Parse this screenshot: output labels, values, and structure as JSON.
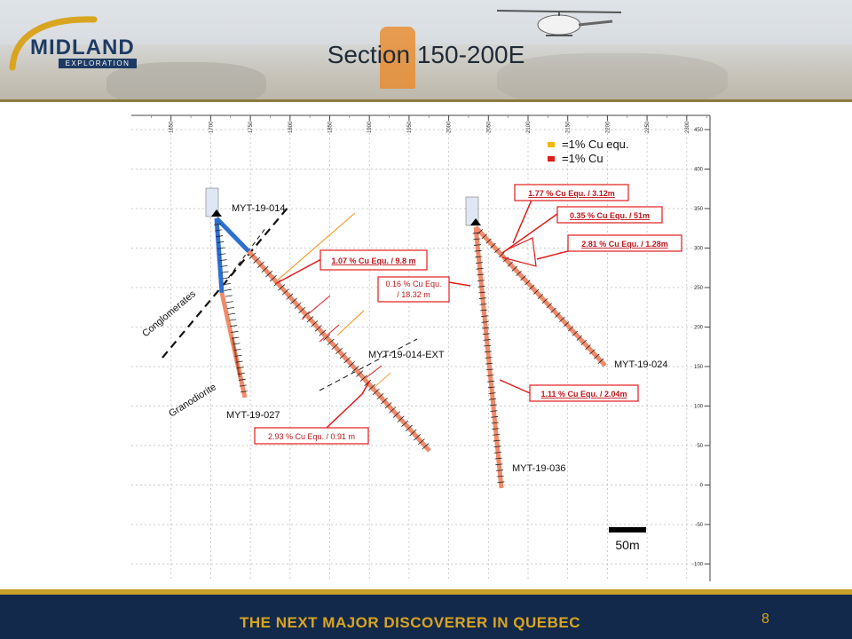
{
  "header": {
    "logo_text": "MIDLAND",
    "logo_subtext": "EXPLORATION",
    "title": "Section 150-200E"
  },
  "legend": {
    "items": [
      {
        "label": "=1% Cu equ.",
        "color": "#f2b705"
      },
      {
        "label": "=1% Cu",
        "color": "#e31b1b"
      }
    ]
  },
  "x_axis": {
    "ticks": [
      "1650",
      "1700",
      "1750",
      "1800",
      "1850",
      "1900",
      "1950",
      "2000",
      "2050",
      "2100",
      "2150",
      "2200",
      "2250",
      "2300"
    ]
  },
  "y_axis": {
    "ticks": [
      "450",
      "400",
      "350",
      "300",
      "250",
      "200",
      "150",
      "100",
      "50",
      "0",
      "-50",
      "-100"
    ]
  },
  "holes": {
    "myt_014": "MYT-19-014",
    "myt_014_ext": "MYT-19-014-EXT",
    "myt_027": "MYT-19-027",
    "myt_024": "MYT-19-024",
    "myt_036": "MYT-19-036"
  },
  "geology": {
    "conglomerates": "Conglomerates",
    "granodiorite": "Granodiorite"
  },
  "annotations": {
    "a1": "1.07 % Cu Equ. / 9.8 m",
    "a2_line1": "0.16 % Cu Equ.",
    "a2_line2": "/ 18.32 m",
    "a3": "2.93 % Cu Equ. / 0.91 m",
    "a4": "1.77 % Cu Equ. / 3.12m",
    "a5": "0.35 % Cu Equ. / 51m",
    "a6": "2.81 % Cu Equ. / 1.28m",
    "a7": "1.11 % Cu Equ. / 2.04m"
  },
  "scale_bar": {
    "label": "50m"
  },
  "footer": {
    "tagline": "THE NEXT MAJOR DISCOVERER IN QUEBEC",
    "page_number": "8"
  },
  "colors": {
    "navy": "#13294b",
    "gold": "#d9a520",
    "drill_trace": "#f08a6a",
    "upper_hole": "#2c6fd1",
    "callout_red": "#e31b1b"
  }
}
